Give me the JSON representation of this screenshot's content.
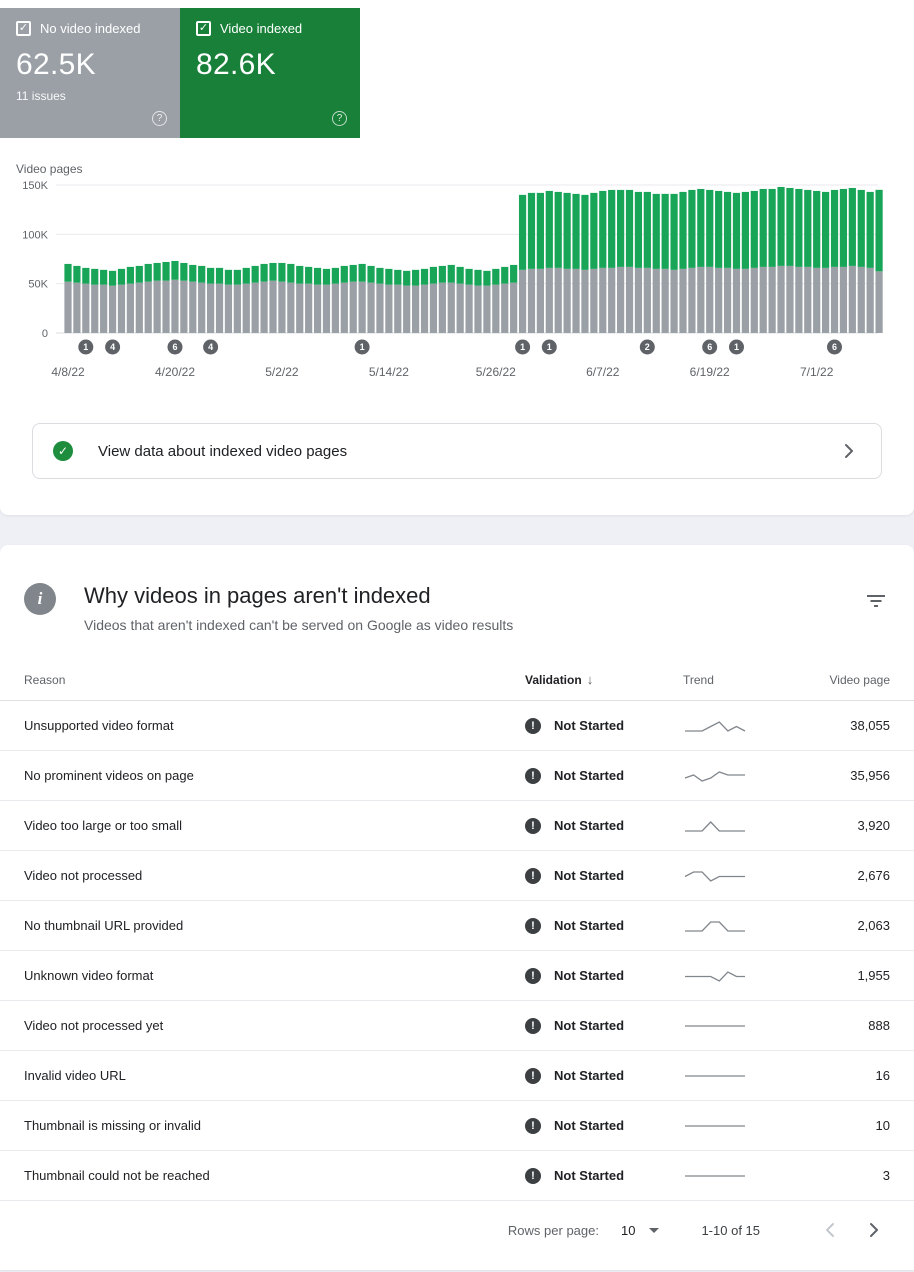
{
  "icons": {
    "help": "?",
    "check": "✓",
    "error": "!",
    "info": "i",
    "sort_desc": "↓"
  },
  "summary_cards": [
    {
      "label": "No video indexed",
      "value": "62.5K",
      "sub": "11 issues",
      "color": "#9aa0a6"
    },
    {
      "label": "Video indexed",
      "value": "82.6K",
      "sub": "",
      "color": "#188038"
    }
  ],
  "banner": {
    "text": "View data about indexed video pages"
  },
  "chart_data": {
    "type": "bar",
    "stacked": true,
    "ylabel": "Video pages",
    "start_date": "4/8/22",
    "unit": "thousands of pages per day",
    "ylim": [
      0,
      150
    ],
    "y_ticks": [
      {
        "label": "150K",
        "value": 150
      },
      {
        "label": "100K",
        "value": 100
      },
      {
        "label": "50K",
        "value": 50
      },
      {
        "label": "0",
        "value": 0
      }
    ],
    "x_ticks": [
      {
        "day": 0,
        "label": "4/8/22"
      },
      {
        "day": 12,
        "label": "4/20/22"
      },
      {
        "day": 24,
        "label": "5/2/22"
      },
      {
        "day": 36,
        "label": "5/14/22"
      },
      {
        "day": 48,
        "label": "5/26/22"
      },
      {
        "day": 60,
        "label": "6/7/22"
      },
      {
        "day": 72,
        "label": "6/19/22"
      },
      {
        "day": 84,
        "label": "7/1/22"
      }
    ],
    "annotations": [
      {
        "day": 2,
        "count": "1"
      },
      {
        "day": 5,
        "count": "4"
      },
      {
        "day": 12,
        "count": "6"
      },
      {
        "day": 16,
        "count": "4"
      },
      {
        "day": 33,
        "count": "1"
      },
      {
        "day": 51,
        "count": "1"
      },
      {
        "day": 54,
        "count": "1"
      },
      {
        "day": 65,
        "count": "2"
      },
      {
        "day": 72,
        "count": "6"
      },
      {
        "day": 75,
        "count": "1"
      },
      {
        "day": 86,
        "count": "6"
      }
    ],
    "colors": {
      "not_indexed": "#9aa0a6",
      "indexed": "#18a558"
    },
    "series": [
      {
        "name": "No video indexed",
        "color": "#9aa0a6",
        "values": [
          52,
          51,
          50,
          49,
          49,
          48,
          49,
          50,
          51,
          52,
          53,
          53,
          54,
          53,
          52,
          51,
          50,
          50,
          49,
          49,
          50,
          51,
          52,
          53,
          52,
          51,
          50,
          50,
          49,
          49,
          50,
          51,
          52,
          52,
          51,
          50,
          49,
          49,
          48,
          48,
          49,
          50,
          51,
          51,
          50,
          49,
          48,
          48,
          49,
          50,
          51,
          64,
          65,
          65,
          66,
          66,
          65,
          65,
          64,
          65,
          66,
          66,
          67,
          67,
          66,
          66,
          65,
          65,
          64,
          65,
          66,
          67,
          67,
          66,
          66,
          65,
          65,
          66,
          67,
          67,
          68,
          68,
          67,
          67,
          66,
          66,
          67,
          67,
          68,
          67,
          66,
          62.5
        ]
      },
      {
        "name": "Video indexed",
        "color": "#18a558",
        "values": [
          18,
          17,
          16,
          16,
          15,
          15,
          16,
          17,
          17,
          18,
          18,
          19,
          19,
          18,
          17,
          17,
          16,
          16,
          15,
          15,
          16,
          17,
          18,
          18,
          19,
          19,
          18,
          17,
          17,
          16,
          16,
          17,
          17,
          18,
          17,
          16,
          16,
          15,
          15,
          16,
          16,
          17,
          17,
          18,
          17,
          16,
          16,
          15,
          16,
          17,
          18,
          76,
          77,
          77,
          78,
          77,
          77,
          76,
          76,
          77,
          78,
          79,
          78,
          78,
          77,
          77,
          76,
          76,
          77,
          78,
          79,
          79,
          78,
          78,
          77,
          77,
          78,
          78,
          79,
          79,
          80,
          79,
          79,
          78,
          78,
          77,
          78,
          79,
          79,
          78,
          77,
          82.6
        ]
      }
    ]
  },
  "issues_section": {
    "title": "Why videos in pages aren't indexed",
    "subtitle": "Videos that aren't indexed can't be served on Google as video results",
    "table": {
      "headers": {
        "reason": "Reason",
        "validation": "Validation",
        "trend": "Trend",
        "page": "Video page"
      },
      "rows": [
        {
          "reason": "Unsupported video format",
          "validation": "Not Started",
          "pages": "38,055",
          "trend": [
            5,
            5,
            5,
            6,
            7,
            5,
            6,
            5
          ]
        },
        {
          "reason": "No prominent videos on page",
          "validation": "Not Started",
          "pages": "35,956",
          "trend": [
            5,
            6,
            4,
            5,
            7,
            6,
            6,
            6
          ]
        },
        {
          "reason": "Video too large or too small",
          "validation": "Not Started",
          "pages": "3,920",
          "trend": [
            5,
            5,
            5,
            6,
            5,
            5,
            5,
            5
          ]
        },
        {
          "reason": "Video not processed",
          "validation": "Not Started",
          "pages": "2,676",
          "trend": [
            5,
            6,
            6,
            4,
            5,
            5,
            5,
            5
          ]
        },
        {
          "reason": "No thumbnail URL provided",
          "validation": "Not Started",
          "pages": "2,063",
          "trend": [
            5,
            5,
            5,
            6,
            6,
            5,
            5,
            5
          ]
        },
        {
          "reason": "Unknown video format",
          "validation": "Not Started",
          "pages": "1,955",
          "trend": [
            5,
            5,
            5,
            5,
            4,
            6,
            5,
            5
          ]
        },
        {
          "reason": "Video not processed yet",
          "validation": "Not Started",
          "pages": "888",
          "trend": [
            5,
            5,
            5,
            5,
            5,
            5,
            5,
            5
          ]
        },
        {
          "reason": "Invalid video URL",
          "validation": "Not Started",
          "pages": "16",
          "trend": [
            5,
            5,
            5,
            5,
            5,
            5,
            5,
            5
          ]
        },
        {
          "reason": "Thumbnail is missing or invalid",
          "validation": "Not Started",
          "pages": "10",
          "trend": [
            5,
            5,
            5,
            5,
            5,
            5,
            5,
            5
          ]
        },
        {
          "reason": "Thumbnail could not be reached",
          "validation": "Not Started",
          "pages": "3",
          "trend": [
            5,
            5,
            5,
            5,
            5,
            5,
            5,
            5
          ]
        }
      ]
    },
    "footer": {
      "rows_per_page_label": "Rows per page:",
      "rows_per_page": "10",
      "range": "1-10 of 15"
    }
  }
}
